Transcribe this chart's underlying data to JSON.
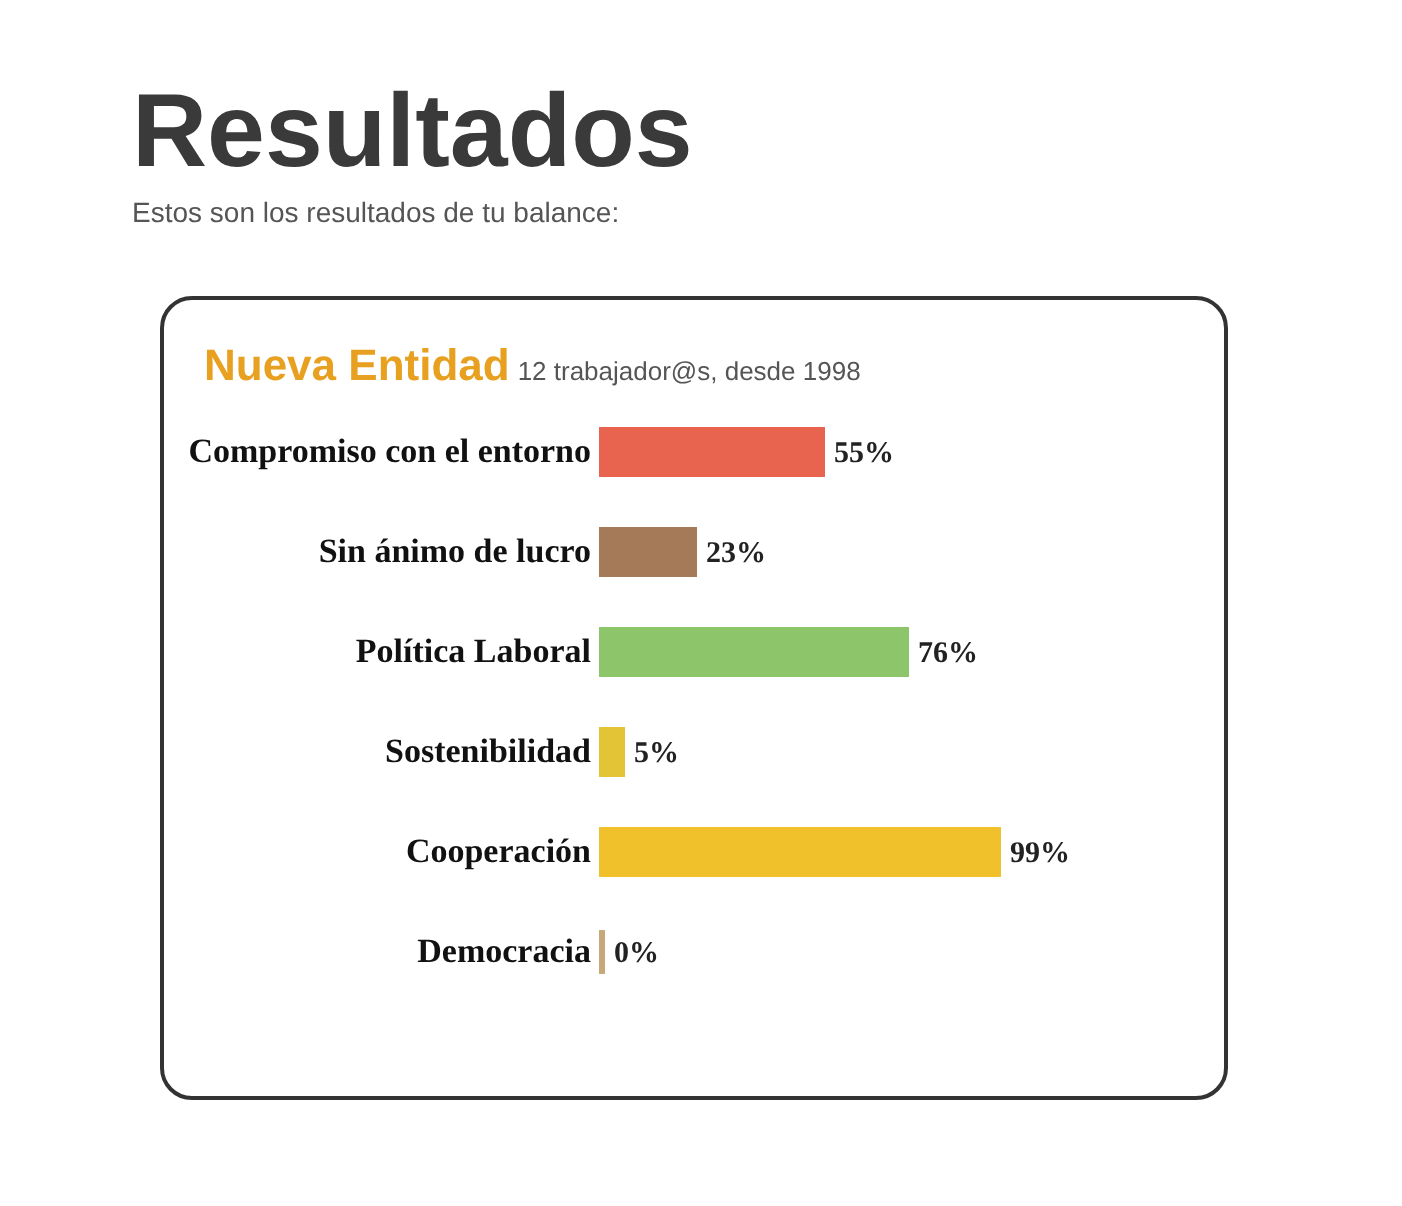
{
  "chart_data": {
    "type": "bar",
    "orientation": "horizontal",
    "title": "Resultados",
    "subtitle": "Estos son los resultados de tu balance:",
    "annotations": [
      "Nueva Entidad",
      "12 trabajador@s, desde 1998"
    ],
    "categories": [
      "Compromiso con el entorno",
      "Sin ánimo de lucro",
      "Política Laboral",
      "Sostenibilidad",
      "Cooperación",
      "Democracia"
    ],
    "values": [
      55,
      23,
      76,
      5,
      99,
      0
    ],
    "colors": [
      "#e8644e",
      "#a47a58",
      "#8cc56a",
      "#e4c437",
      "#f0c12a",
      "#c8a878"
    ],
    "value_labels": [
      "55%",
      "23%",
      "76%",
      "5%",
      "99%",
      "0%"
    ]
  }
}
